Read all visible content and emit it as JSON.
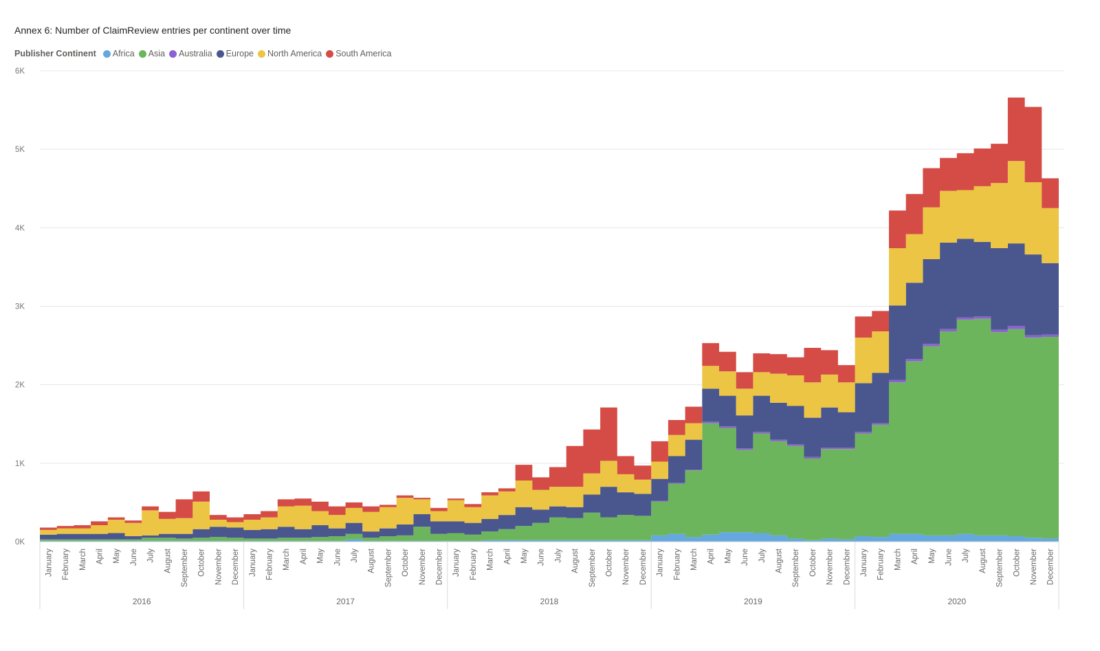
{
  "title": "Annex 6: Number of ClaimReview entries per continent over time",
  "legend": {
    "title": "Publisher Continent",
    "items": [
      {
        "name": "Africa",
        "color": "#64a8df"
      },
      {
        "name": "Asia",
        "color": "#6db55c"
      },
      {
        "name": "Australia",
        "color": "#8a62d1"
      },
      {
        "name": "Europe",
        "color": "#4a578e"
      },
      {
        "name": "North America",
        "color": "#ecc544"
      },
      {
        "name": "South America",
        "color": "#d44c45"
      }
    ]
  },
  "chart_data": {
    "type": "area",
    "stacked": true,
    "step": true,
    "ylim": [
      0,
      6000
    ],
    "yticks": [
      {
        "value": 0,
        "label": "0K"
      },
      {
        "value": 1000,
        "label": "1K"
      },
      {
        "value": 2000,
        "label": "2K"
      },
      {
        "value": 3000,
        "label": "3K"
      },
      {
        "value": 4000,
        "label": "4K"
      },
      {
        "value": 5000,
        "label": "5K"
      },
      {
        "value": 6000,
        "label": "6K"
      }
    ],
    "gridlines": true,
    "legend_position": "top-left",
    "years": [
      "2016",
      "2017",
      "2018",
      "2019",
      "2020"
    ],
    "months": [
      "January",
      "February",
      "March",
      "April",
      "May",
      "June",
      "July",
      "August",
      "September",
      "October",
      "November",
      "December"
    ],
    "series": [
      {
        "name": "Africa",
        "color": "#64a8df",
        "values": [
          10,
          10,
          10,
          10,
          10,
          10,
          10,
          10,
          10,
          10,
          10,
          10,
          10,
          10,
          10,
          10,
          10,
          10,
          30,
          10,
          10,
          10,
          10,
          10,
          10,
          10,
          20,
          20,
          20,
          20,
          20,
          20,
          20,
          20,
          20,
          20,
          80,
          100,
          60,
          90,
          120,
          120,
          110,
          80,
          40,
          20,
          40,
          30,
          70,
          60,
          100,
          100,
          80,
          80,
          100,
          80,
          80,
          70,
          50,
          40
        ]
      },
      {
        "name": "Asia",
        "color": "#6db55c",
        "values": [
          20,
          20,
          20,
          20,
          20,
          20,
          40,
          40,
          30,
          40,
          50,
          40,
          30,
          30,
          40,
          40,
          50,
          60,
          70,
          40,
          60,
          70,
          180,
          90,
          100,
          80,
          110,
          140,
          180,
          220,
          290,
          280,
          350,
          290,
          320,
          310,
          430,
          640,
          850,
          1420,
          1330,
          1050,
          1270,
          1200,
          1180,
          1040,
          1140,
          1150,
          1310,
          1430,
          1930,
          2200,
          2410,
          2600,
          2730,
          2760,
          2590,
          2640,
          2550,
          2570
        ]
      },
      {
        "name": "Australia",
        "color": "#8a62d1",
        "values": [
          0,
          0,
          0,
          0,
          0,
          0,
          0,
          0,
          0,
          0,
          0,
          0,
          0,
          0,
          0,
          0,
          0,
          0,
          0,
          0,
          0,
          0,
          0,
          0,
          0,
          0,
          0,
          0,
          0,
          0,
          0,
          0,
          0,
          0,
          0,
          0,
          10,
          10,
          10,
          20,
          20,
          20,
          20,
          20,
          20,
          20,
          20,
          20,
          20,
          20,
          30,
          30,
          30,
          30,
          30,
          30,
          30,
          40,
          30,
          30
        ]
      },
      {
        "name": "Europe",
        "color": "#4a578e",
        "values": [
          60,
          70,
          70,
          70,
          80,
          40,
          30,
          50,
          60,
          110,
          130,
          130,
          110,
          120,
          140,
          110,
          150,
          100,
          140,
          80,
          100,
          140,
          160,
          160,
          150,
          150,
          160,
          180,
          240,
          170,
          140,
          140,
          230,
          390,
          290,
          280,
          280,
          340,
          380,
          420,
          390,
          420,
          460,
          470,
          490,
          500,
          510,
          450,
          620,
          640,
          950,
          970,
          1080,
          1100,
          1000,
          950,
          1040,
          1050,
          1030,
          910
        ]
      },
      {
        "name": "North America",
        "color": "#ecc544",
        "values": [
          60,
          70,
          70,
          110,
          170,
          170,
          320,
          190,
          200,
          350,
          90,
          70,
          130,
          150,
          260,
          300,
          180,
          170,
          190,
          250,
          270,
          340,
          190,
          130,
          270,
          200,
          300,
          300,
          340,
          250,
          250,
          260,
          270,
          330,
          230,
          180,
          220,
          270,
          210,
          290,
          310,
          340,
          300,
          370,
          390,
          450,
          420,
          380,
          580,
          530,
          730,
          620,
          660,
          660,
          620,
          710,
          830,
          1050,
          920,
          700
        ]
      },
      {
        "name": "South America",
        "color": "#d44c45",
        "values": [
          30,
          30,
          40,
          50,
          30,
          30,
          50,
          90,
          240,
          130,
          60,
          60,
          70,
          80,
          90,
          90,
          120,
          110,
          70,
          70,
          30,
          30,
          20,
          40,
          20,
          40,
          40,
          40,
          200,
          160,
          250,
          520,
          560,
          680,
          230,
          180,
          260,
          190,
          210,
          290,
          250,
          210,
          240,
          250,
          230,
          440,
          310,
          220,
          270,
          260,
          480,
          510,
          500,
          420,
          470,
          480,
          500,
          810,
          960,
          380
        ]
      }
    ]
  }
}
